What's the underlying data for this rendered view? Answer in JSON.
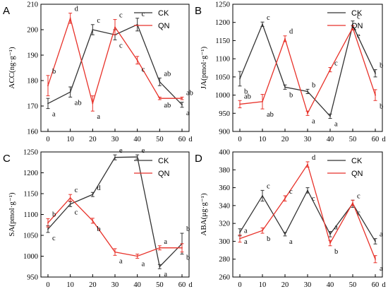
{
  "colors": {
    "CK": "#333333",
    "QN": "#e8322a"
  },
  "chart_data": [
    {
      "panel": "A",
      "type": "line",
      "ylabel": "ACC(ng·g⁻¹)",
      "x": [
        0,
        10,
        20,
        30,
        40,
        50,
        60
      ],
      "x_tick_labels": [
        "0",
        "10",
        "20",
        "30",
        "40",
        "50",
        "60"
      ],
      "x_unit": "d",
      "ylim": [
        160,
        210
      ],
      "yticks": [
        160,
        170,
        180,
        190,
        200,
        210
      ],
      "legend_position": "top-right",
      "series": [
        {
          "name": "CK",
          "values": [
            171,
            175.5,
            200,
            198,
            202,
            179.5,
            170.5
          ],
          "errors": [
            2,
            2,
            2,
            2,
            2.5,
            1.5,
            1
          ],
          "letters": [
            "a",
            "ab",
            "c",
            "c",
            "c",
            "ab",
            "a"
          ]
        },
        {
          "name": "QN",
          "values": [
            178,
            204.5,
            171,
            201,
            188,
            173,
            173
          ],
          "errors": [
            4,
            2,
            3,
            3,
            1.5,
            0.5,
            0.5
          ],
          "letters": [
            "b",
            "d",
            "a",
            "c",
            "c",
            "ab",
            "ab"
          ]
        }
      ]
    },
    {
      "panel": "B",
      "type": "line",
      "ylabel": "JA(pmol·g⁻¹)",
      "x": [
        0,
        10,
        20,
        30,
        40,
        50,
        60
      ],
      "x_tick_labels": [
        "0",
        "10",
        "20",
        "30",
        "40",
        "50",
        "60"
      ],
      "x_unit": "d",
      "ylim": [
        900,
        1250
      ],
      "yticks": [
        900,
        950,
        1000,
        1050,
        1100,
        1150,
        1200,
        1250
      ],
      "legend_position": "top-right",
      "series": [
        {
          "name": "CK",
          "values": [
            1045,
            1195,
            1022,
            1010,
            942,
            1192,
            1060
          ],
          "errors": [
            20,
            6,
            6,
            6,
            6,
            12,
            10
          ],
          "letters": [
            "b",
            "c",
            "b",
            "b",
            "a",
            "c",
            "b"
          ]
        },
        {
          "name": "QN",
          "values": [
            975,
            982,
            1155,
            950,
            1070,
            1185,
            1000
          ],
          "errors": [
            10,
            20,
            8,
            6,
            6,
            6,
            15
          ],
          "letters": [
            "ab",
            "ab",
            "d",
            "a",
            "c",
            "e",
            "b"
          ]
        }
      ]
    },
    {
      "panel": "C",
      "type": "line",
      "ylabel": "SA(pmol·g⁻¹)",
      "x": [
        0,
        10,
        20,
        30,
        40,
        50,
        60
      ],
      "x_tick_labels": [
        "0",
        "10",
        "20",
        "30",
        "40",
        "50",
        "60"
      ],
      "x_unit": "d",
      "ylim": [
        950,
        1250
      ],
      "yticks": [
        950,
        1000,
        1050,
        1100,
        1150,
        1200,
        1250
      ],
      "legend_position": "top-right",
      "series": [
        {
          "name": "CK",
          "values": [
            1065,
            1125,
            1148,
            1237,
            1238,
            975,
            1030
          ],
          "errors": [
            8,
            6,
            5,
            6,
            5,
            5,
            25
          ],
          "letters": [
            "c",
            "c",
            "d",
            "e",
            "e",
            "a",
            "b"
          ]
        },
        {
          "name": "QN",
          "values": [
            1080,
            1140,
            1085,
            1010,
            1000,
            1020,
            1020
          ],
          "errors": [
            10,
            8,
            6,
            8,
            5,
            5,
            10
          ],
          "letters": [
            "b",
            "c",
            "b",
            "a",
            "a",
            "a",
            "b"
          ]
        }
      ]
    },
    {
      "panel": "D",
      "type": "line",
      "ylabel": "ABA(μg·g⁻¹)",
      "x": [
        0,
        10,
        20,
        30,
        40,
        50,
        60
      ],
      "x_tick_labels": [
        "0",
        "10",
        "20",
        "30",
        "40",
        "50",
        "60"
      ],
      "x_unit": "d",
      "ylim": [
        260,
        400
      ],
      "yticks": [
        260,
        280,
        300,
        320,
        340,
        360,
        380,
        400
      ],
      "legend_position": "top-right",
      "series": [
        {
          "name": "CK",
          "values": [
            310,
            351,
            308,
            357,
            308,
            342,
            300
          ],
          "errors": [
            4,
            6,
            2,
            3,
            3,
            4,
            3
          ],
          "letters": [
            "a",
            "c",
            "a",
            "c",
            "a",
            "c",
            "a"
          ]
        },
        {
          "name": "QN",
          "values": [
            303,
            312,
            348,
            386,
            298,
            343,
            280
          ],
          "errors": [
            4,
            3,
            3,
            3,
            3,
            3,
            4
          ],
          "letters": [
            "a",
            "b",
            "c",
            "d",
            "b",
            "c",
            "a"
          ]
        }
      ]
    }
  ]
}
